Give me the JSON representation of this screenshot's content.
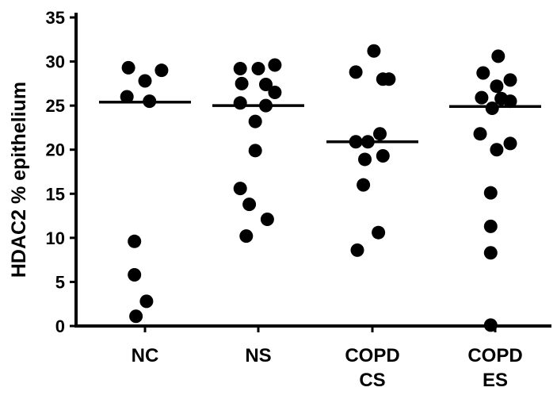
{
  "chart_data": {
    "type": "scatter",
    "title": "",
    "ylabel": "HDAC2 % epithelium",
    "xlabel": "",
    "ylim": [
      0,
      35
    ],
    "yticks": [
      0,
      5,
      10,
      15,
      20,
      25,
      30,
      35
    ],
    "grid": false,
    "categories": [
      {
        "key": "NC",
        "lines": [
          "NC"
        ]
      },
      {
        "key": "NS",
        "lines": [
          "NS"
        ]
      },
      {
        "key": "COPD CS",
        "lines": [
          "COPD",
          "CS"
        ]
      },
      {
        "key": "COPD ES",
        "lines": [
          "COPD",
          "ES"
        ]
      }
    ],
    "groups": [
      {
        "category": "NC",
        "median": 25.4,
        "points": [
          {
            "dx": -0.55,
            "y": 29.3
          },
          {
            "dx": 0.55,
            "y": 29.0
          },
          {
            "dx": 0.0,
            "y": 27.8
          },
          {
            "dx": -0.6,
            "y": 26.0
          },
          {
            "dx": 0.15,
            "y": 25.5
          },
          {
            "dx": -0.35,
            "y": 9.6
          },
          {
            "dx": -0.35,
            "y": 5.8
          },
          {
            "dx": 0.05,
            "y": 2.8
          },
          {
            "dx": -0.3,
            "y": 1.1
          }
        ]
      },
      {
        "category": "NS",
        "median": 25.0,
        "points": [
          {
            "dx": -0.6,
            "y": 29.2
          },
          {
            "dx": 0.0,
            "y": 29.2
          },
          {
            "dx": 0.55,
            "y": 29.6
          },
          {
            "dx": -0.55,
            "y": 27.5
          },
          {
            "dx": 0.25,
            "y": 27.4
          },
          {
            "dx": 0.55,
            "y": 26.5
          },
          {
            "dx": -0.6,
            "y": 25.3
          },
          {
            "dx": 0.25,
            "y": 25.0
          },
          {
            "dx": -0.1,
            "y": 23.2
          },
          {
            "dx": -0.1,
            "y": 19.9
          },
          {
            "dx": -0.6,
            "y": 15.6
          },
          {
            "dx": -0.3,
            "y": 13.8
          },
          {
            "dx": 0.3,
            "y": 12.1
          },
          {
            "dx": -0.4,
            "y": 10.2
          }
        ]
      },
      {
        "category": "COPD CS",
        "median": 20.9,
        "points": [
          {
            "dx": 0.05,
            "y": 31.2
          },
          {
            "dx": -0.55,
            "y": 28.8
          },
          {
            "dx": 0.35,
            "y": 28.0
          },
          {
            "dx": 0.55,
            "y": 28.0
          },
          {
            "dx": 0.25,
            "y": 21.8
          },
          {
            "dx": -0.55,
            "y": 20.9
          },
          {
            "dx": -0.15,
            "y": 20.9
          },
          {
            "dx": 0.35,
            "y": 19.3
          },
          {
            "dx": -0.25,
            "y": 18.9
          },
          {
            "dx": -0.3,
            "y": 16.0
          },
          {
            "dx": 0.2,
            "y": 10.6
          },
          {
            "dx": -0.5,
            "y": 8.6
          }
        ]
      },
      {
        "category": "COPD ES",
        "median": 24.9,
        "points": [
          {
            "dx": 0.1,
            "y": 30.6
          },
          {
            "dx": -0.4,
            "y": 28.7
          },
          {
            "dx": 0.05,
            "y": 27.2
          },
          {
            "dx": 0.5,
            "y": 27.9
          },
          {
            "dx": -0.45,
            "y": 25.9
          },
          {
            "dx": 0.2,
            "y": 25.8
          },
          {
            "dx": 0.5,
            "y": 25.5
          },
          {
            "dx": -0.1,
            "y": 24.7
          },
          {
            "dx": -0.5,
            "y": 21.8
          },
          {
            "dx": 0.05,
            "y": 20.0
          },
          {
            "dx": 0.5,
            "y": 20.7
          },
          {
            "dx": -0.15,
            "y": 15.1
          },
          {
            "dx": -0.15,
            "y": 11.3
          },
          {
            "dx": -0.15,
            "y": 8.3
          },
          {
            "dx": -0.15,
            "y": 0.1
          }
        ]
      }
    ]
  }
}
